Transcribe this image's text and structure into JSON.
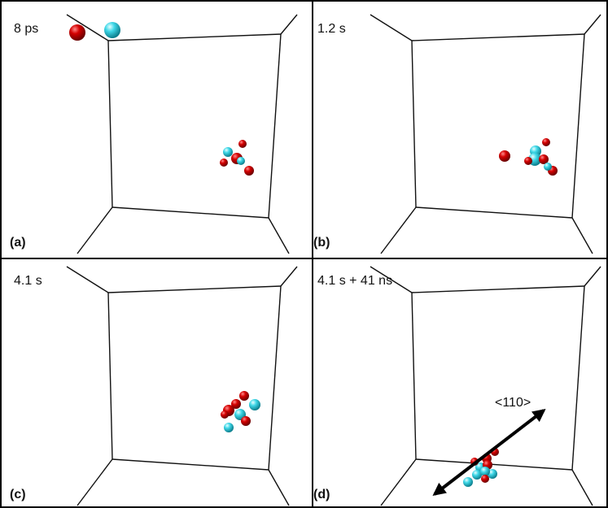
{
  "panels": [
    {
      "time": "8 ps",
      "label": "(a)"
    },
    {
      "time": "1.2 s",
      "label": "(b)"
    },
    {
      "time": "4.1 s",
      "label": "(c)"
    },
    {
      "time": "4.1 s + 41 ns",
      "label": "(d)"
    }
  ],
  "annotation": "<110>"
}
